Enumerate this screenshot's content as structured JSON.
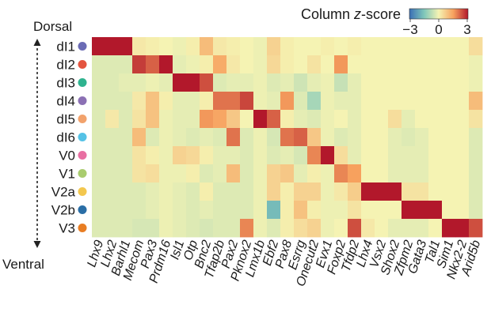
{
  "chart_data": {
    "type": "heatmap",
    "title": "",
    "colorbar": {
      "title_prefix": "Column ",
      "title_italic": "z",
      "title_suffix": "-score",
      "min": -3,
      "mid": 0,
      "max": 3,
      "tick_labels": [
        "−3",
        "0",
        "3"
      ],
      "colors": [
        "#3a6fb5",
        "#7fc7ba",
        "#f5f3b3",
        "#f7a15e",
        "#b2182b"
      ]
    },
    "axis_top_label": "Dorsal",
    "axis_bottom_label": "Ventral",
    "rows": [
      {
        "name": "dI1",
        "color": "#6a6bb5"
      },
      {
        "name": "dI2",
        "color": "#e4543f"
      },
      {
        "name": "dI3",
        "color": "#2fb38f"
      },
      {
        "name": "dI4",
        "color": "#8b70b4"
      },
      {
        "name": "dI5",
        "color": "#f2a26c"
      },
      {
        "name": "dI6",
        "color": "#55c2e6"
      },
      {
        "name": "V0",
        "color": "#e86fa2"
      },
      {
        "name": "V1",
        "color": "#a9cc6e"
      },
      {
        "name": "V2a",
        "color": "#f3c74e"
      },
      {
        "name": "V2b",
        "color": "#2a6ea6"
      },
      {
        "name": "V3",
        "color": "#e87d23"
      }
    ],
    "columns": [
      "Lhx9",
      "Lhx2",
      "Barhl1",
      "Mecom",
      "Pax3",
      "Prdm16",
      "Isl1",
      "Otp",
      "Bnc2",
      "Tfap2b",
      "Pax2",
      "Pknox2",
      "Lmx1b",
      "Ebf2",
      "Pax8",
      "Esrrg",
      "Onecut2",
      "Evx1",
      "Foxp2",
      "Tfdp2",
      "Lhx4",
      "Vsx2",
      "Shox2",
      "Zfpm2",
      "Gata3",
      "Tal1",
      "Sim1",
      "Nkx2-2",
      "Arid5b"
    ],
    "values": [
      [
        3.0,
        3.0,
        3.0,
        0.2,
        0.1,
        0.0,
        -0.1,
        0.1,
        1.0,
        0.2,
        0.1,
        0.0,
        -0.1,
        0.6,
        0.1,
        0.0,
        0.0,
        0.1,
        0.0,
        0.1,
        0.0,
        0.0,
        0.0,
        0.0,
        0.0,
        0.0,
        0.0,
        0.0,
        0.4
      ],
      [
        -0.3,
        -0.3,
        -0.3,
        2.6,
        2.2,
        3.0,
        -0.2,
        -0.1,
        0.1,
        1.3,
        0.2,
        0.0,
        -0.1,
        0.5,
        0.1,
        0.0,
        0.3,
        0.0,
        1.6,
        0.0,
        0.0,
        0.0,
        0.0,
        0.0,
        0.0,
        0.0,
        0.0,
        0.0,
        -0.1
      ],
      [
        -0.3,
        -0.3,
        -0.2,
        -0.2,
        -0.1,
        -0.2,
        3.0,
        3.0,
        2.4,
        -0.3,
        -0.2,
        -0.2,
        -0.1,
        -0.3,
        -0.2,
        -0.5,
        -0.2,
        -0.1,
        -0.6,
        -0.2,
        0.0,
        0.0,
        0.0,
        0.0,
        0.0,
        0.0,
        0.0,
        0.0,
        -0.1
      ],
      [
        -0.3,
        -0.3,
        -0.3,
        0.2,
        0.9,
        0.1,
        -0.2,
        -0.2,
        0.1,
        2.0,
        2.0,
        2.5,
        -0.1,
        -0.2,
        1.6,
        -0.3,
        -1.0,
        -0.1,
        -0.2,
        -0.2,
        0.0,
        0.0,
        0.0,
        0.0,
        0.0,
        0.0,
        0.0,
        0.0,
        1.0
      ],
      [
        -0.3,
        0.2,
        -0.3,
        0.3,
        0.9,
        -0.1,
        -0.2,
        -0.2,
        1.6,
        1.4,
        0.8,
        0.0,
        3.0,
        2.2,
        0.1,
        -0.2,
        -0.3,
        -0.1,
        0.0,
        -0.2,
        0.0,
        0.0,
        0.4,
        -0.2,
        0.0,
        0.0,
        0.0,
        0.0,
        0.3
      ],
      [
        -0.3,
        -0.3,
        -0.3,
        1.0,
        -0.3,
        -0.1,
        -0.2,
        -0.3,
        -0.2,
        -0.3,
        2.0,
        -0.3,
        -0.1,
        -0.4,
        2.0,
        2.2,
        0.8,
        -0.1,
        -0.3,
        -0.2,
        0.0,
        0.0,
        -0.2,
        -0.3,
        -0.2,
        0.0,
        0.0,
        0.0,
        -0.3
      ],
      [
        -0.3,
        -0.3,
        -0.3,
        0.3,
        0.1,
        -0.1,
        0.6,
        0.5,
        0.1,
        -0.2,
        -0.2,
        -0.3,
        -0.1,
        -0.3,
        -0.2,
        -0.4,
        1.8,
        3.0,
        0.4,
        -0.2,
        0.0,
        0.0,
        -0.2,
        -0.2,
        -0.2,
        0.0,
        0.0,
        0.0,
        -0.3
      ],
      [
        -0.3,
        -0.3,
        -0.3,
        0.3,
        0.4,
        -0.1,
        -0.1,
        0.1,
        -0.3,
        -0.2,
        1.0,
        -0.3,
        -0.1,
        0.6,
        0.8,
        -0.2,
        0.1,
        -0.1,
        1.8,
        1.5,
        0.0,
        0.0,
        -0.2,
        -0.2,
        -0.2,
        0.0,
        0.0,
        0.0,
        -0.3
      ],
      [
        -0.3,
        -0.3,
        -0.3,
        -0.3,
        -0.2,
        -0.1,
        -0.2,
        -0.3,
        0.1,
        -0.3,
        -0.3,
        -0.3,
        -0.1,
        0.6,
        0.1,
        0.6,
        0.6,
        -0.1,
        0.2,
        0.7,
        3.0,
        3.0,
        3.0,
        0.3,
        0.3,
        0.0,
        0.0,
        0.0,
        -0.3
      ],
      [
        -0.3,
        -0.3,
        -0.3,
        -0.3,
        -0.2,
        -0.1,
        -0.2,
        -0.3,
        -0.2,
        -0.3,
        -0.3,
        -0.3,
        -0.1,
        -1.7,
        0.1,
        0.9,
        0.1,
        -0.1,
        -0.1,
        0.3,
        0.0,
        0.0,
        0.0,
        3.0,
        3.0,
        3.0,
        0.0,
        0.0,
        -0.3
      ],
      [
        -0.3,
        -0.3,
        -0.3,
        -0.4,
        -0.4,
        -0.1,
        -0.2,
        -0.3,
        -0.4,
        -0.3,
        -0.3,
        1.8,
        -0.1,
        -0.3,
        0.1,
        0.4,
        0.6,
        -0.1,
        0.0,
        2.4,
        0.2,
        0.0,
        -0.2,
        -0.2,
        -0.2,
        0.0,
        3.0,
        3.0,
        2.4
      ]
    ]
  }
}
